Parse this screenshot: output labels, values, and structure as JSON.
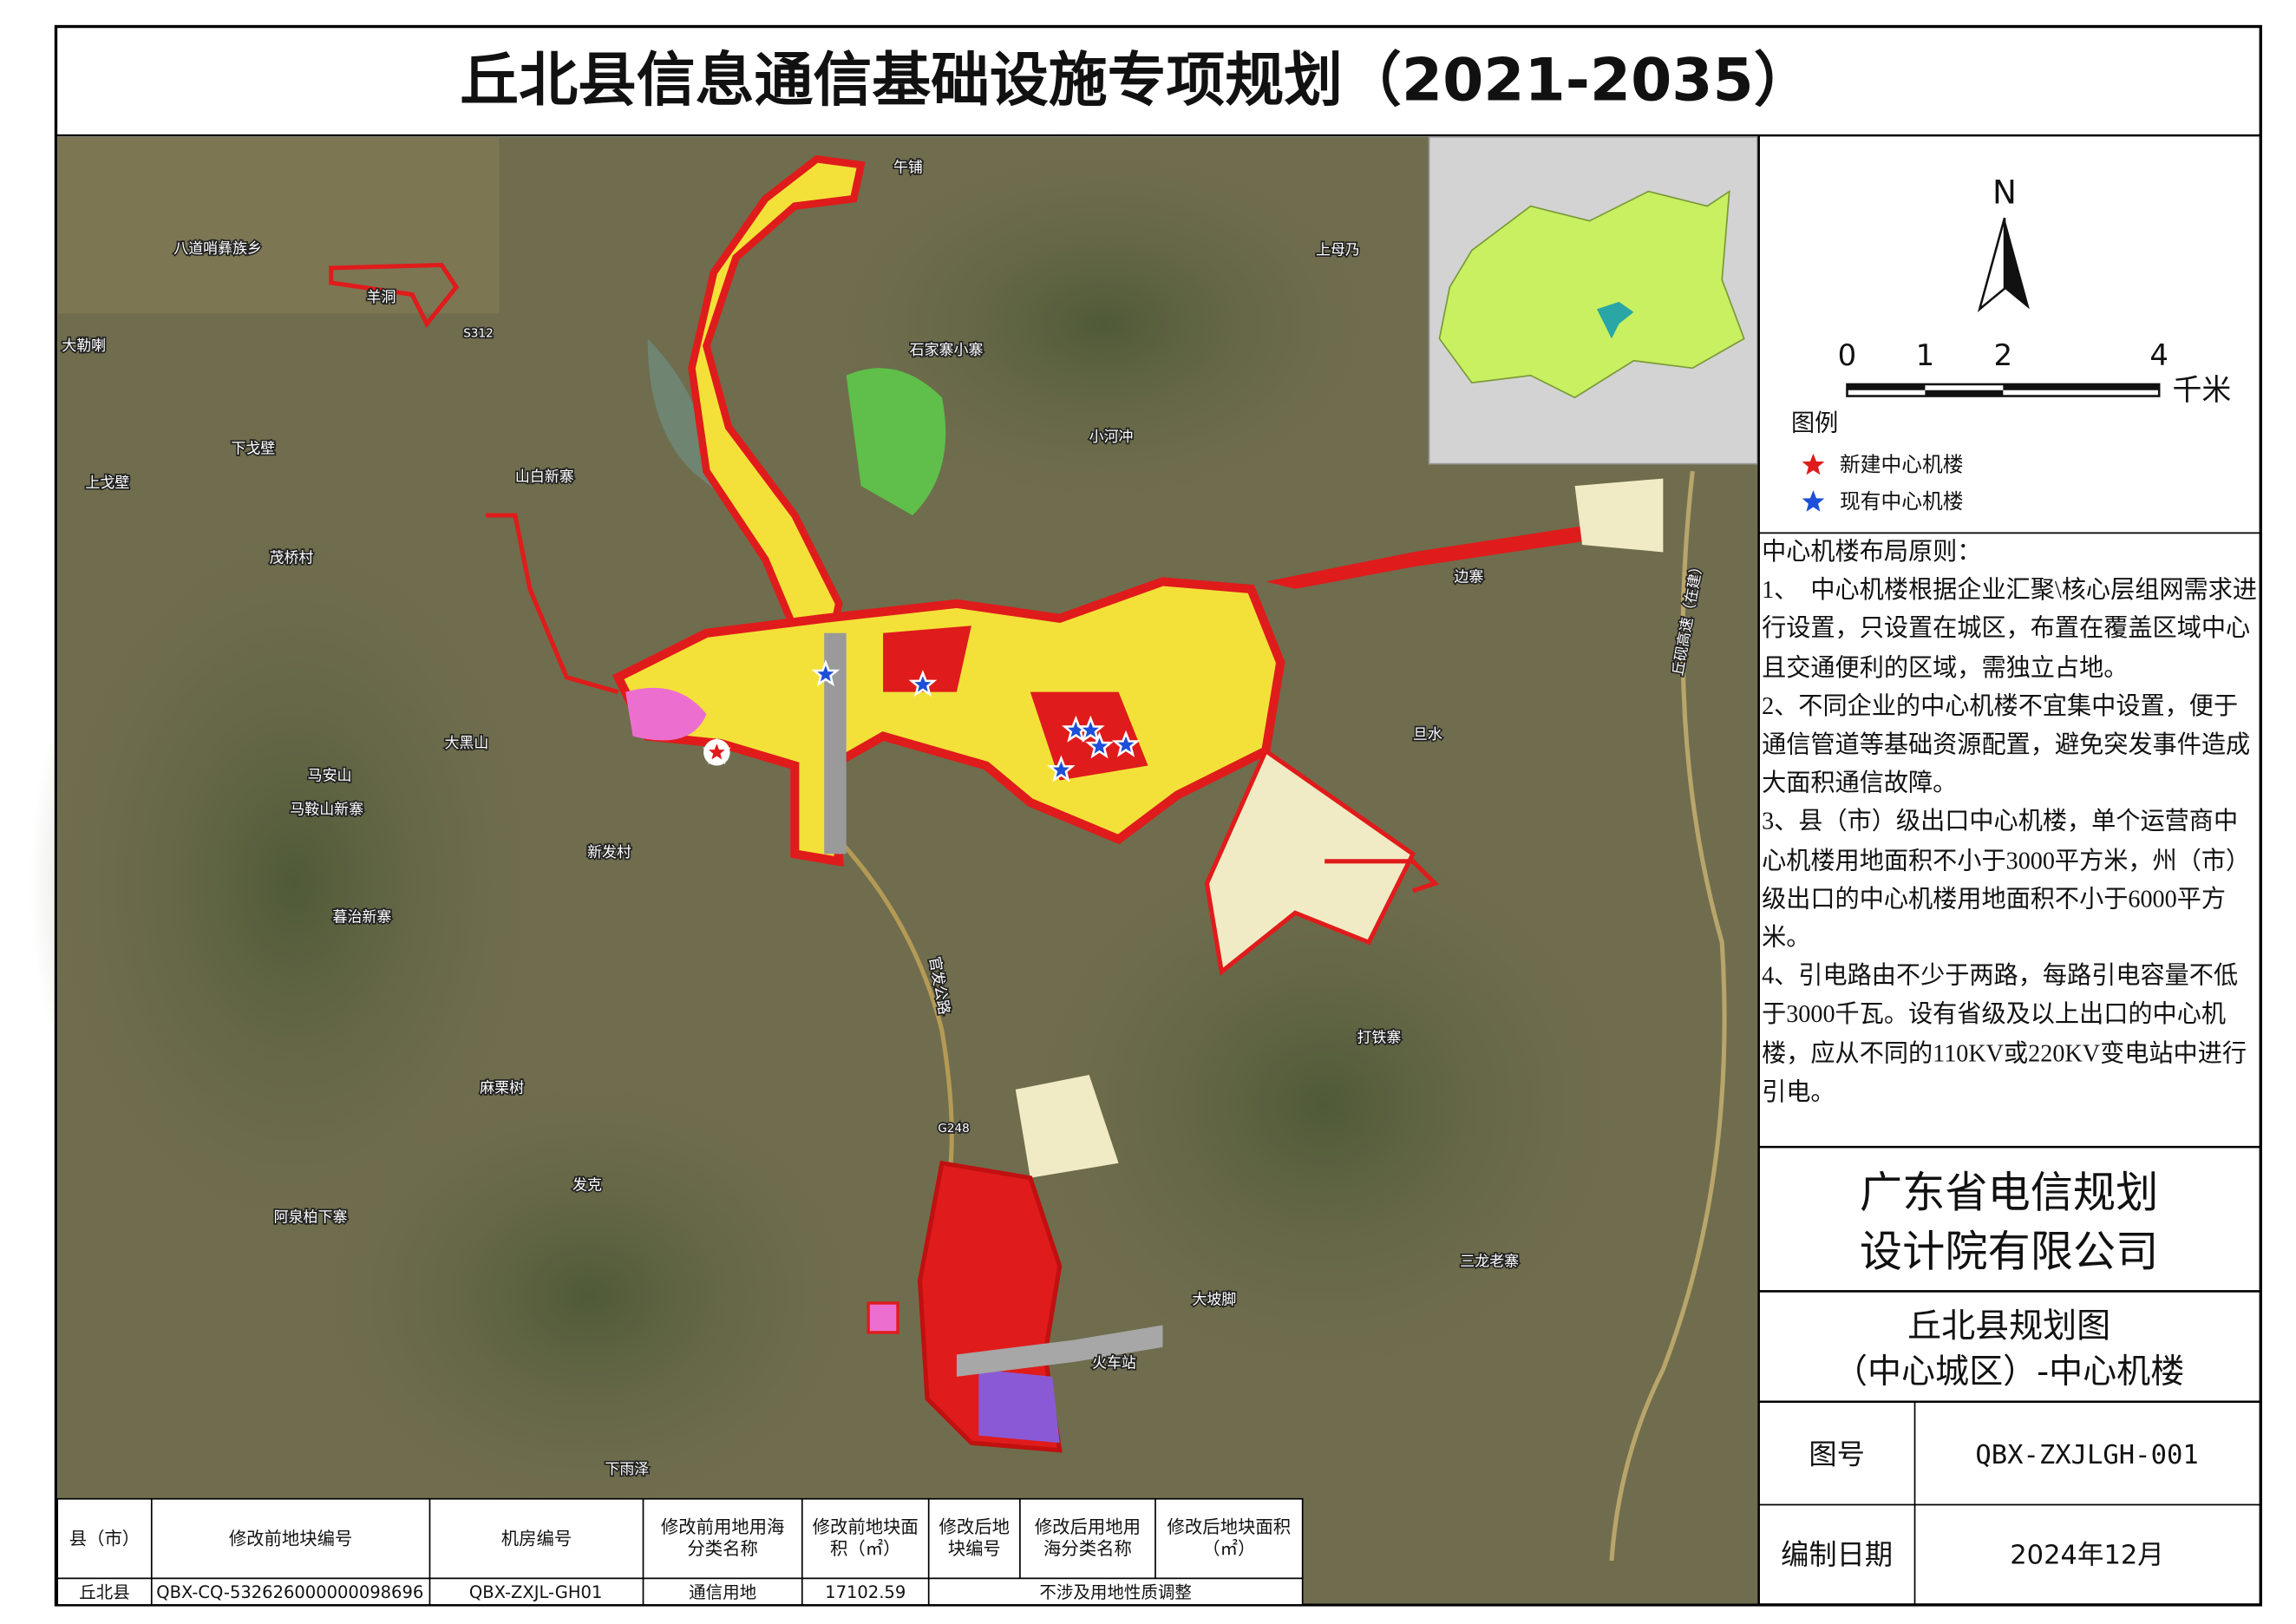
{
  "title": "丘北县信息通信基础设施专项规划（2021-2035）",
  "map_labels": [
    "八道哨彝族乡",
    "羊洞",
    "大勒喇",
    "下戈壁",
    "上戈壁",
    "山白新寨",
    "茂桥村",
    "大黑山",
    "马安山",
    "马鞍山新寨",
    "新发村",
    "暮治新寨",
    "麻栗树",
    "发克",
    "阿泉柏下寨",
    "下雨泽",
    "午铺",
    "上母乃",
    "石家寨小寨",
    "小河冲",
    "边寨",
    "旦水",
    "打铁寨",
    "三龙老寨",
    "大坡脚",
    "火车站"
  ],
  "road_labels": [
    "S312",
    "G248",
    "官发公路",
    "丘砚高速（在建）"
  ],
  "compass": {
    "north": "N"
  },
  "scale_bar": {
    "ticks": [
      0,
      1,
      2,
      4
    ],
    "unit": "千米"
  },
  "legend": {
    "title": "图例",
    "items": [
      "新建中心机楼",
      "现有中心机楼"
    ]
  },
  "principles": {
    "title": "中心机楼布局原则：",
    "items": [
      "1、　中心机楼根据企业汇聚\\核心层组网需求进行设置，只设置在城区，布置在覆盖区域中心且交通便利的区域，需独立占地。",
      "2、不同企业的中心机楼不宜集中设置，便于通信管道等基础资源配置，避免突发事件造成大面积通信故障。",
      "3、县（市）级出口中心机楼，单个运营商中心机楼用地面积不小于3000平方米，州（市）级出口的中心机楼用地面积不小于6000平方米。",
      "4、引电路由不少于两路，每路引电容量不低于3000千瓦。设有省级及以上出口的中心机楼，应从不同的110KV或220KV变电站中进行引电。"
    ]
  },
  "company": [
    "广东省电信规划",
    "设计院有限公司"
  ],
  "drawing_title": [
    "丘北县规划图",
    "（中心城区）-中心机楼"
  ],
  "drawing_number": {
    "label": "图号",
    "value": "QBX-ZXJLGH-001"
  },
  "date": {
    "label": "编制日期",
    "value": "2024年12月"
  },
  "table": {
    "header": [
      "县（市）",
      "修改前地块编号",
      "机房编号",
      "修改前用地用海分类名称",
      "修改前地块面积（㎡）",
      "修改后地块编号",
      "修改后用地用海分类名称",
      "修改后地块面积（㎡）"
    ],
    "rows": [
      [
        "丘北县",
        "QBX-CQ-532626000000098696",
        "QBX-ZXJL-GH01",
        "通信用地",
        "17102.59",
        "不涉及用地性质调整"
      ]
    ]
  }
}
